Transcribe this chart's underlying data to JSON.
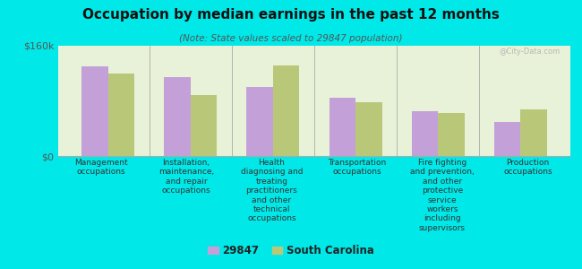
{
  "title": "Occupation by median earnings in the past 12 months",
  "subtitle": "(Note: State values scaled to 29847 population)",
  "background_color": "#00e8e8",
  "plot_bg_top": "#e8f2d8",
  "plot_bg_bottom": "#c8dca0",
  "categories": [
    "Management\noccupations",
    "Installation,\nmaintenance,\nand repair\noccupations",
    "Health\ndiagnosing and\ntreating\npractitioners\nand other\ntechnical\noccupations",
    "Transportation\noccupations",
    "Fire fighting\nand prevention,\nand other\nprotective\nservice\nworkers\nincluding\nsupervisors",
    "Production\noccupations"
  ],
  "values_29847": [
    130000,
    115000,
    100000,
    85000,
    65000,
    50000
  ],
  "values_sc": [
    120000,
    88000,
    132000,
    78000,
    62000,
    68000
  ],
  "color_29847": "#c4a0d8",
  "color_sc": "#b8c878",
  "ylim": [
    0,
    160000
  ],
  "yticks": [
    0,
    160000
  ],
  "ytick_labels": [
    "$0",
    "$160k"
  ],
  "legend_label_29847": "29847",
  "legend_label_sc": "South Carolina",
  "bar_width": 0.32,
  "watermark": "@City-Data.com"
}
